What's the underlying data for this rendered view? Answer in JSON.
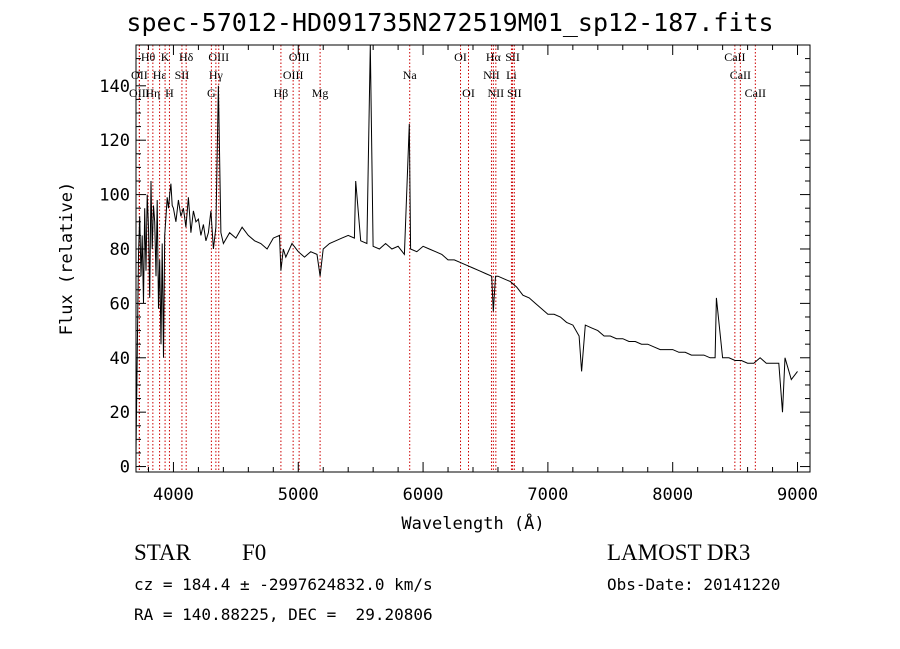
{
  "chart_data": {
    "type": "line",
    "title": "spec-57012-HD091735N272519M01_sp12-187.fits",
    "xlabel": "Wavelength (Å)",
    "ylabel": "Flux (relative)",
    "xlim": [
      3700,
      9100
    ],
    "ylim": [
      -2,
      155
    ],
    "xticks": [
      4000,
      5000,
      6000,
      7000,
      8000,
      9000
    ],
    "yticks": [
      0,
      20,
      40,
      60,
      80,
      100,
      120,
      140
    ],
    "series": [
      {
        "name": "spectrum",
        "x": [
          3700,
          3710,
          3720,
          3730,
          3740,
          3750,
          3760,
          3770,
          3780,
          3790,
          3800,
          3810,
          3820,
          3830,
          3840,
          3850,
          3860,
          3870,
          3880,
          3890,
          3900,
          3910,
          3920,
          3930,
          3940,
          3950,
          3960,
          3970,
          3980,
          3990,
          4000,
          4020,
          4040,
          4060,
          4080,
          4100,
          4120,
          4140,
          4160,
          4180,
          4200,
          4220,
          4240,
          4260,
          4280,
          4300,
          4320,
          4340,
          4360,
          4380,
          4400,
          4450,
          4500,
          4550,
          4600,
          4650,
          4700,
          4750,
          4800,
          4850,
          4861,
          4880,
          4900,
          4950,
          5000,
          5050,
          5100,
          5150,
          5175,
          5200,
          5250,
          5300,
          5350,
          5400,
          5450,
          5460,
          5500,
          5550,
          5577,
          5600,
          5650,
          5700,
          5750,
          5800,
          5850,
          5890,
          5900,
          5950,
          6000,
          6050,
          6100,
          6150,
          6200,
          6250,
          6300,
          6350,
          6400,
          6450,
          6500,
          6550,
          6563,
          6580,
          6600,
          6650,
          6700,
          6750,
          6800,
          6850,
          6900,
          6950,
          7000,
          7050,
          7100,
          7150,
          7200,
          7250,
          7270,
          7300,
          7350,
          7400,
          7450,
          7500,
          7550,
          7600,
          7650,
          7700,
          7750,
          7800,
          7850,
          7900,
          7950,
          8000,
          8050,
          8100,
          8150,
          8200,
          8250,
          8300,
          8340,
          8350,
          8400,
          8450,
          8500,
          8550,
          8600,
          8650,
          8700,
          8750,
          8800,
          8850,
          8880,
          8900,
          8950,
          9000
        ],
        "values": [
          5,
          40,
          78,
          92,
          70,
          85,
          60,
          95,
          72,
          100,
          88,
          62,
          105,
          80,
          96,
          90,
          70,
          98,
          58,
          76,
          45,
          82,
          40,
          85,
          92,
          99,
          95,
          100,
          104,
          96,
          95,
          90,
          98,
          92,
          95,
          88,
          99,
          86,
          94,
          90,
          91,
          85,
          89,
          83,
          86,
          94,
          80,
          88,
          140,
          86,
          82,
          86,
          84,
          88,
          85,
          83,
          82,
          80,
          84,
          85,
          72,
          80,
          77,
          82,
          79,
          77,
          79,
          78,
          70,
          80,
          82,
          83,
          84,
          85,
          84,
          105,
          83,
          82,
          155,
          81,
          80,
          82,
          80,
          81,
          78,
          126,
          80,
          79,
          81,
          80,
          79,
          78,
          76,
          76,
          75,
          74,
          73,
          72,
          71,
          70,
          57,
          70,
          70,
          69,
          68,
          66,
          63,
          62,
          60,
          58,
          56,
          56,
          55,
          53,
          52,
          48,
          35,
          52,
          51,
          50,
          48,
          48,
          47,
          47,
          46,
          46,
          45,
          45,
          44,
          43,
          43,
          43,
          42,
          42,
          41,
          41,
          41,
          40,
          40,
          62,
          40,
          40,
          39,
          39,
          38,
          38,
          40,
          38,
          38,
          38,
          20,
          40,
          32,
          35
        ]
      }
    ],
    "lines": [
      {
        "label": "Hθ",
        "x": 3797,
        "tier": 1
      },
      {
        "label": "K",
        "x": 3933,
        "tier": 1
      },
      {
        "label": "Hδ",
        "x": 4102,
        "tier": 1
      },
      {
        "label": "OIII",
        "x": 4363,
        "tier": 1
      },
      {
        "label": "OIII",
        "x": 5007,
        "tier": 1
      },
      {
        "label": "OI",
        "x": 6300,
        "tier": 1
      },
      {
        "label": "Hα",
        "x": 6563,
        "tier": 1
      },
      {
        "label": "SII",
        "x": 6717,
        "tier": 1
      },
      {
        "label": "CaII",
        "x": 8498,
        "tier": 1
      },
      {
        "label": "OII",
        "x": 3727,
        "tier": 2
      },
      {
        "label": "Hε",
        "x": 3889,
        "tier": 2
      },
      {
        "label": "SII",
        "x": 4068,
        "tier": 2
      },
      {
        "label": "Hγ",
        "x": 4340,
        "tier": 2
      },
      {
        "label": "OIII",
        "x": 4959,
        "tier": 2
      },
      {
        "label": "Na",
        "x": 5893,
        "tier": 2
      },
      {
        "label": "NII",
        "x": 6548,
        "tier": 2
      },
      {
        "label": "Li",
        "x": 6708,
        "tier": 2
      },
      {
        "label": "CaII",
        "x": 8542,
        "tier": 2
      },
      {
        "label": "OIII",
        "x": 3727,
        "tier": 3
      },
      {
        "label": "Hη",
        "x": 3835,
        "tier": 3
      },
      {
        "label": "H",
        "x": 3968,
        "tier": 3
      },
      {
        "label": "G",
        "x": 4304,
        "tier": 3
      },
      {
        "label": "Hβ",
        "x": 4861,
        "tier": 3
      },
      {
        "label": "Mg",
        "x": 5175,
        "tier": 3
      },
      {
        "label": "OI",
        "x": 6364,
        "tier": 3
      },
      {
        "label": "NII",
        "x": 6583,
        "tier": 3
      },
      {
        "label": "SII",
        "x": 6731,
        "tier": 3
      },
      {
        "label": "CaII",
        "x": 8662,
        "tier": 3
      }
    ]
  },
  "info": {
    "class_label": "STAR",
    "subclass": "F0",
    "survey": "LAMOST DR3",
    "cz_line": "cz = 184.4 ± -2997624832.0 km/s",
    "obs_date": "Obs-Date: 20141220",
    "coords": "RA = 140.88225, DEC =  29.20806"
  },
  "colors": {
    "line_marker": "#cc0000",
    "spectrum": "#000000"
  }
}
